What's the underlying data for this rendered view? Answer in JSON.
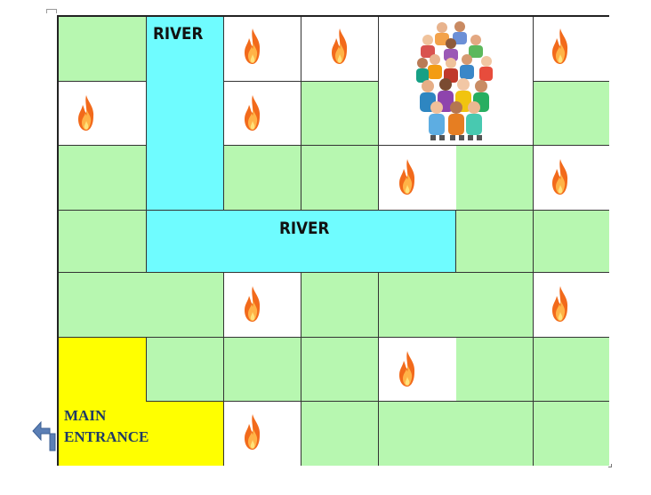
{
  "labels": {
    "river_top": "RIVER",
    "river_middle": "RIVER",
    "entrance_line1": "MAIN",
    "entrance_line2": "ENTRANCE"
  },
  "colors": {
    "grass": "#b7f7b0",
    "river": "#6ffcff",
    "entrance": "#ffff00",
    "empty": "#ffffff",
    "entrance_text": "#1f3a66",
    "arrow": "#5b7fb5"
  },
  "icons": {
    "fire": "fire-icon",
    "crowd": "crowd-icon",
    "entrance_arrow": "turn-left-arrow-icon"
  }
}
